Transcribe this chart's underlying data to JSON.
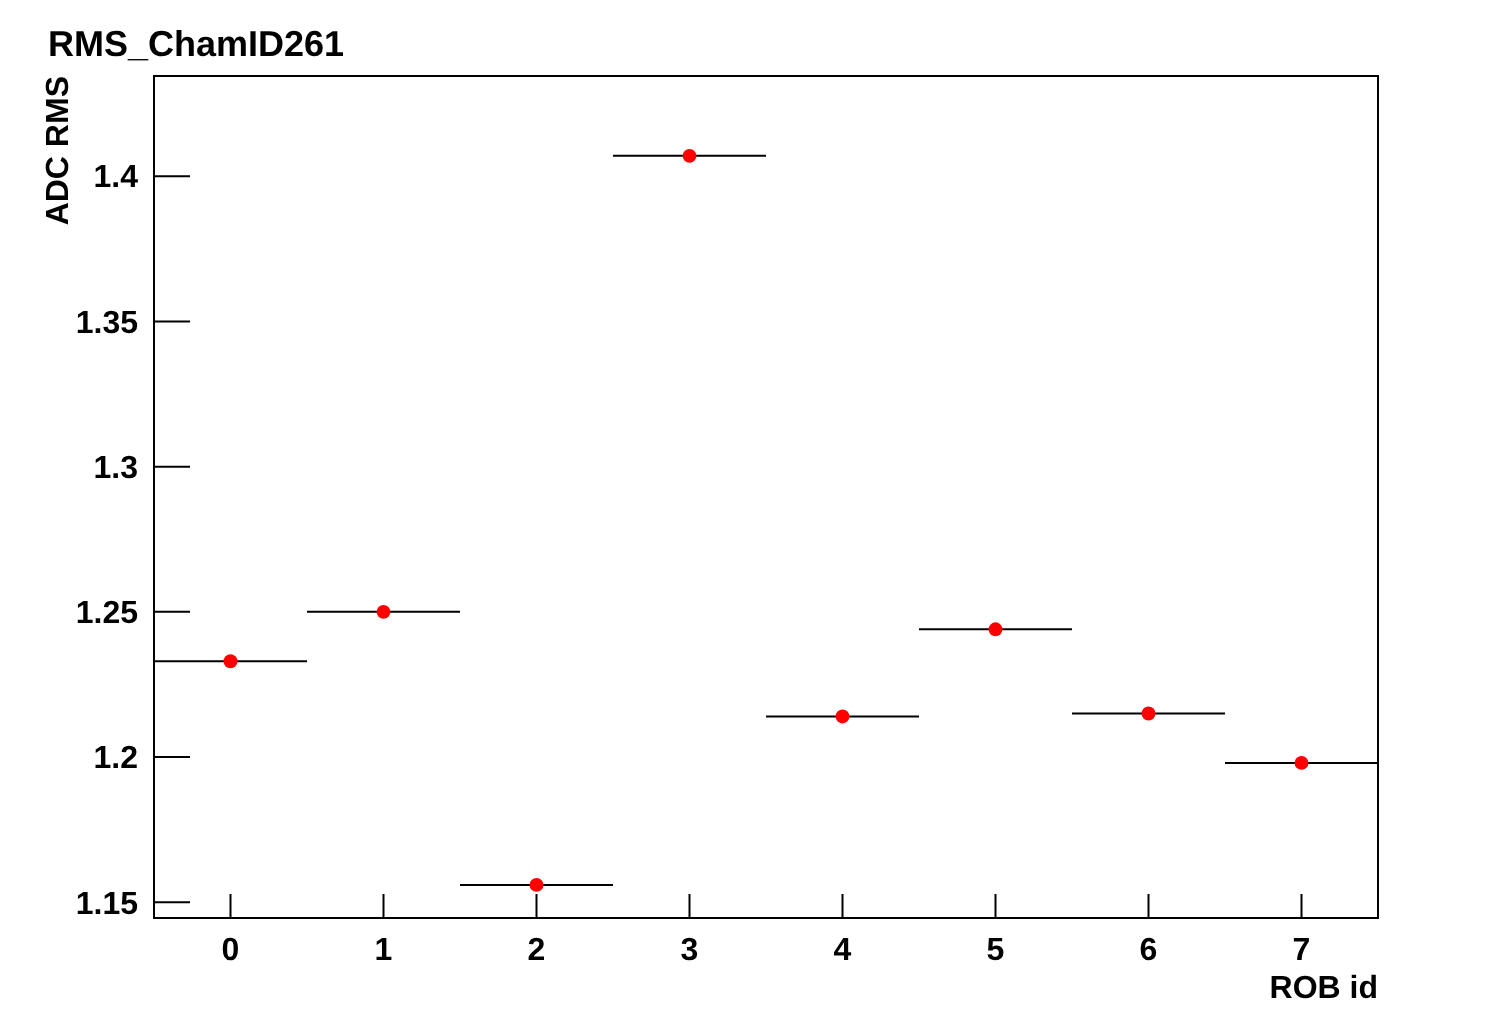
{
  "chart_data": {
    "type": "scatter",
    "title": "RMS_ChamID261",
    "xlabel": "ROB id",
    "ylabel": "ADC RMS",
    "x": [
      0,
      1,
      2,
      3,
      4,
      5,
      6,
      7
    ],
    "values": [
      1.233,
      1.25,
      1.156,
      1.407,
      1.214,
      1.244,
      1.215,
      1.198
    ],
    "xerrors": [
      0.5,
      0.5,
      0.5,
      0.5,
      0.5,
      0.5,
      0.5,
      0.5
    ],
    "color": "#ff0000",
    "marker": "circle",
    "xlim": [
      -0.5,
      7.5
    ],
    "xticks": [
      0,
      1,
      2,
      3,
      4,
      5,
      6,
      7
    ],
    "ylim": [
      1.1446,
      1.4345
    ],
    "yticks": [
      {
        "value": 1.15,
        "label": "1.15"
      },
      {
        "value": 1.2,
        "label": "1.2"
      },
      {
        "value": 1.25,
        "label": "1.25"
      },
      {
        "value": 1.3,
        "label": "1.3"
      },
      {
        "value": 1.35,
        "label": "1.35"
      },
      {
        "value": 1.4,
        "label": "1.4"
      }
    ]
  }
}
